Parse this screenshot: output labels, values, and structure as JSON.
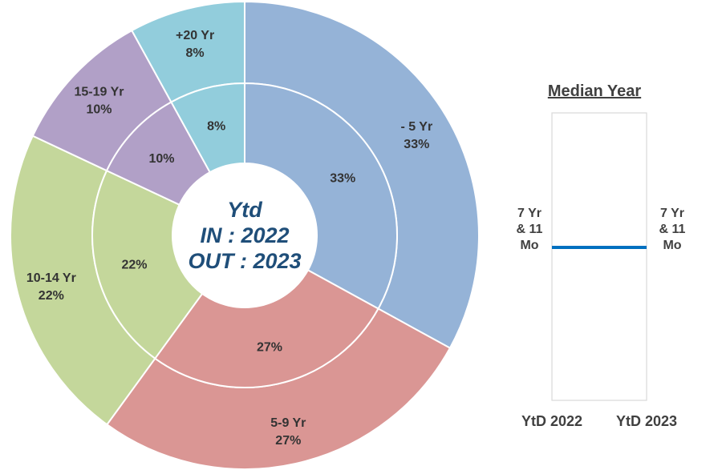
{
  "chart_data": [
    {
      "type": "pie",
      "subtype": "double-donut",
      "center_label": [
        "Ytd",
        "IN : 2022",
        "OUT : 2023"
      ],
      "slices": [
        {
          "label": "- 5 Yr",
          "inner_text": "33%",
          "outer_text": "33%",
          "value": 33,
          "color": "#95b3d7"
        },
        {
          "label": "5-9 Yr",
          "inner_text": "27%",
          "outer_text": "27%",
          "value": 27,
          "color": "#da9694"
        },
        {
          "label": "10-14 Yr",
          "inner_text": "22%",
          "outer_text": "22%",
          "value": 22,
          "color": "#c4d79b"
        },
        {
          "label": "15-19 Yr",
          "inner_text": "10%",
          "outer_text": "10%",
          "value": 10,
          "color": "#b1a0c7"
        },
        {
          "label": "+20 Yr",
          "inner_text": "8%",
          "outer_text": "8%",
          "value": 8,
          "color": "#92cddc"
        }
      ]
    },
    {
      "type": "line",
      "title": "Median Year",
      "categories": [
        "YtD 2022",
        "YtD 2023"
      ],
      "series": [
        {
          "values": [
            7.92,
            7.92
          ],
          "labels": [
            "7 Yr\n& 11\nMo",
            "7 Yr\n& 11\nMo"
          ],
          "color": "#0070c0"
        }
      ]
    }
  ]
}
